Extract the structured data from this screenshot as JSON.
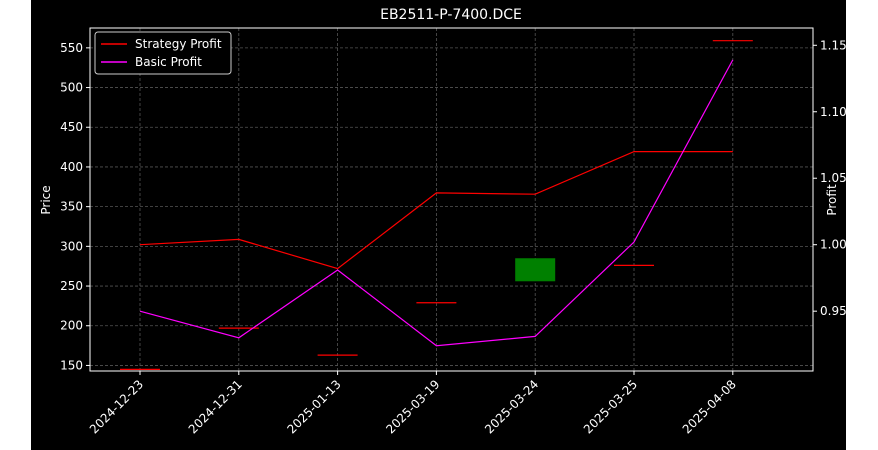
{
  "chart_data": {
    "type": "candlestick+line",
    "title": "EB2511-P-7400.DCE",
    "xlabel": "",
    "ylabel_left": "Price",
    "ylabel_right": "Profit",
    "categories": [
      "2024-12-23",
      "2024-12-31",
      "2025-01-13",
      "2025-03-19",
      "2025-03-24",
      "2025-03-25",
      "2025-04-08"
    ],
    "left_axis": {
      "ylim": [
        143,
        575
      ],
      "ticks": [
        150,
        200,
        250,
        300,
        350,
        400,
        450,
        500,
        550
      ]
    },
    "right_axis": {
      "ylim": [
        0.905,
        1.163
      ],
      "ticks": [
        "0.95",
        "1.00",
        "1.05",
        "1.10",
        "1.15"
      ]
    },
    "price_candles": [
      {
        "date": "2024-12-23",
        "open": 145,
        "close": 145,
        "color": "#ff0000"
      },
      {
        "date": "2024-12-31",
        "open": 197,
        "close": 197,
        "color": "#ff0000"
      },
      {
        "date": "2025-01-13",
        "open": 163,
        "close": 163,
        "color": "#ff0000"
      },
      {
        "date": "2025-03-19",
        "open": 229,
        "close": 229,
        "color": "#ff0000"
      },
      {
        "date": "2025-03-24",
        "open": 256,
        "close": 285,
        "color": "#008000"
      },
      {
        "date": "2025-03-25",
        "open": 276,
        "close": 276,
        "color": "#ff0000"
      },
      {
        "date": "2025-04-08",
        "open": 559,
        "close": 559,
        "color": "#ff0000"
      }
    ],
    "series": [
      {
        "name": "Strategy Profit",
        "color": "#ff0000",
        "axis": "right",
        "values": [
          1.0,
          1.004,
          0.982,
          1.039,
          1.038,
          1.07,
          1.07
        ]
      },
      {
        "name": "Basic Profit",
        "color": "#ff00ff",
        "axis": "right",
        "values": [
          0.95,
          0.93,
          0.981,
          0.924,
          0.931,
          1.002,
          1.139
        ]
      }
    ],
    "grid": true,
    "legend": "upper-left"
  }
}
